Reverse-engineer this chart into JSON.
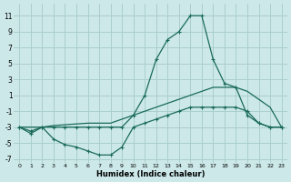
{
  "xlabel": "Humidex (Indice chaleur)",
  "background_color": "#cce8e8",
  "grid_color": "#aacece",
  "line_color": "#1a6b5a",
  "xlim": [
    -0.5,
    23.5
  ],
  "ylim": [
    -7.5,
    12.5
  ],
  "xticks": [
    0,
    1,
    2,
    3,
    4,
    5,
    6,
    7,
    8,
    9,
    10,
    11,
    12,
    13,
    14,
    15,
    16,
    17,
    18,
    19,
    20,
    21,
    22,
    23
  ],
  "yticks": [
    -7,
    -5,
    -3,
    -1,
    1,
    3,
    5,
    7,
    9,
    11
  ],
  "main_x": [
    0,
    1,
    2,
    3,
    4,
    5,
    6,
    7,
    8,
    9,
    10,
    11,
    12,
    13,
    14,
    15,
    16,
    17,
    18,
    19,
    20,
    21,
    22,
    23
  ],
  "main_y": [
    -3.0,
    -3.8,
    -3.0,
    -3.0,
    -3.0,
    -3.0,
    -3.0,
    -3.0,
    -3.0,
    -3.0,
    -1.5,
    1.0,
    5.5,
    8.0,
    9.0,
    11.0,
    11.0,
    5.5,
    2.5,
    2.0,
    -1.5,
    -2.5,
    -3.0,
    -3.0
  ],
  "upper_x": [
    0,
    1,
    2,
    3,
    4,
    5,
    6,
    7,
    8,
    9,
    10,
    11,
    12,
    13,
    14,
    15,
    16,
    17,
    18,
    19,
    20,
    21,
    22,
    23
  ],
  "upper_y": [
    -3.0,
    -3.0,
    -3.0,
    -2.8,
    -2.7,
    -2.6,
    -2.5,
    -2.5,
    -2.5,
    -2.0,
    -1.5,
    -1.0,
    -0.5,
    0.0,
    0.5,
    1.0,
    1.5,
    2.0,
    2.0,
    2.0,
    1.5,
    0.5,
    -0.5,
    -3.0
  ],
  "lower_x": [
    0,
    1,
    2,
    3,
    4,
    5,
    6,
    7,
    8,
    9,
    10,
    11,
    12,
    13,
    14,
    15,
    16,
    17,
    18,
    19,
    20,
    21,
    22,
    23
  ],
  "lower_y": [
    -3.0,
    -3.5,
    -3.0,
    -4.5,
    -5.2,
    -5.5,
    -6.0,
    -6.5,
    -6.5,
    -5.5,
    -3.0,
    -2.5,
    -2.0,
    -1.5,
    -1.0,
    -0.5,
    -0.5,
    -0.5,
    -0.5,
    -0.5,
    -1.0,
    -2.5,
    -3.0,
    -3.0
  ]
}
